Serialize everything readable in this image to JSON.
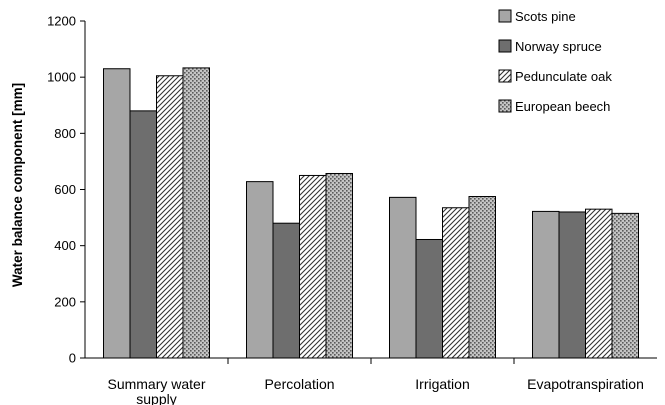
{
  "chart_data": {
    "type": "bar",
    "categories": [
      "Summary water supply",
      "Percolation",
      "Irrigation",
      "Evapotranspiration"
    ],
    "category_label_lines": [
      [
        "Summary water",
        "supply"
      ],
      [
        "Percolation"
      ],
      [
        "Irrigation"
      ],
      [
        "Evapotranspiration"
      ]
    ],
    "series": [
      {
        "name": "Scots pine",
        "values": [
          1030,
          628,
          572,
          522
        ],
        "fill": "#a6a6a6",
        "pattern": "solid"
      },
      {
        "name": "Norway spruce",
        "values": [
          880,
          480,
          422,
          520
        ],
        "fill": "#6e6e6e",
        "pattern": "solid"
      },
      {
        "name": "Pedunculate oak",
        "values": [
          1005,
          650,
          535,
          530
        ],
        "fill": "#ffffff",
        "pattern": "diagonal-hatch"
      },
      {
        "name": "European beech",
        "values": [
          1033,
          657,
          575,
          515
        ],
        "fill": "#bdbdbd",
        "pattern": "dots"
      }
    ],
    "xlabel": "",
    "ylabel": "Water balance component  [mm]",
    "ylim": [
      0,
      1200
    ],
    "yticks": [
      "0",
      "200",
      "400",
      "600",
      "800",
      "1000",
      "1200"
    ],
    "grid": false,
    "legend_position": "top-right"
  }
}
